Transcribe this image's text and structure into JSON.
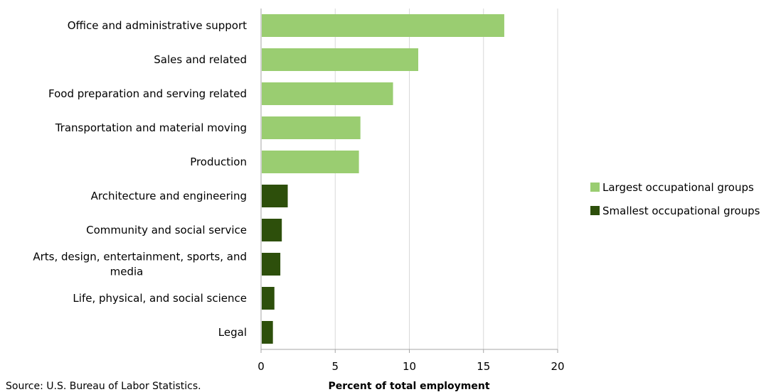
{
  "chart_data": {
    "type": "bar",
    "orientation": "horizontal",
    "categories": [
      "Office and administrative support",
      "Sales and related",
      "Food preparation and serving related",
      "Transportation and material moving",
      "Production",
      "Architecture and engineering",
      "Community and social service",
      [
        "Arts, design, entertainment, sports, and",
        "media"
      ],
      "Life, physical, and social science",
      "Legal"
    ],
    "values": [
      16.4,
      10.6,
      8.9,
      6.7,
      6.6,
      1.8,
      1.4,
      1.3,
      0.9,
      0.8
    ],
    "groups": [
      "largest",
      "largest",
      "largest",
      "largest",
      "largest",
      "smallest",
      "smallest",
      "smallest",
      "smallest",
      "smallest"
    ],
    "series": [
      {
        "name": "Largest occupational groups",
        "key": "largest",
        "color": "#9acd71"
      },
      {
        "name": "Smallest occupational groups",
        "key": "smallest",
        "color": "#2d4f0b"
      }
    ],
    "xlim": [
      0,
      20
    ],
    "xticks": [
      0,
      5,
      10,
      15,
      20
    ],
    "xlabel": "Percent of total employment",
    "ylabel": "",
    "title": "",
    "grid": true,
    "legend_position": "right"
  },
  "source": "Source: U.S. Bureau of Labor Statistics.",
  "colors": {
    "grid": "#d9d9d9",
    "axis": "#a6a6a6"
  }
}
